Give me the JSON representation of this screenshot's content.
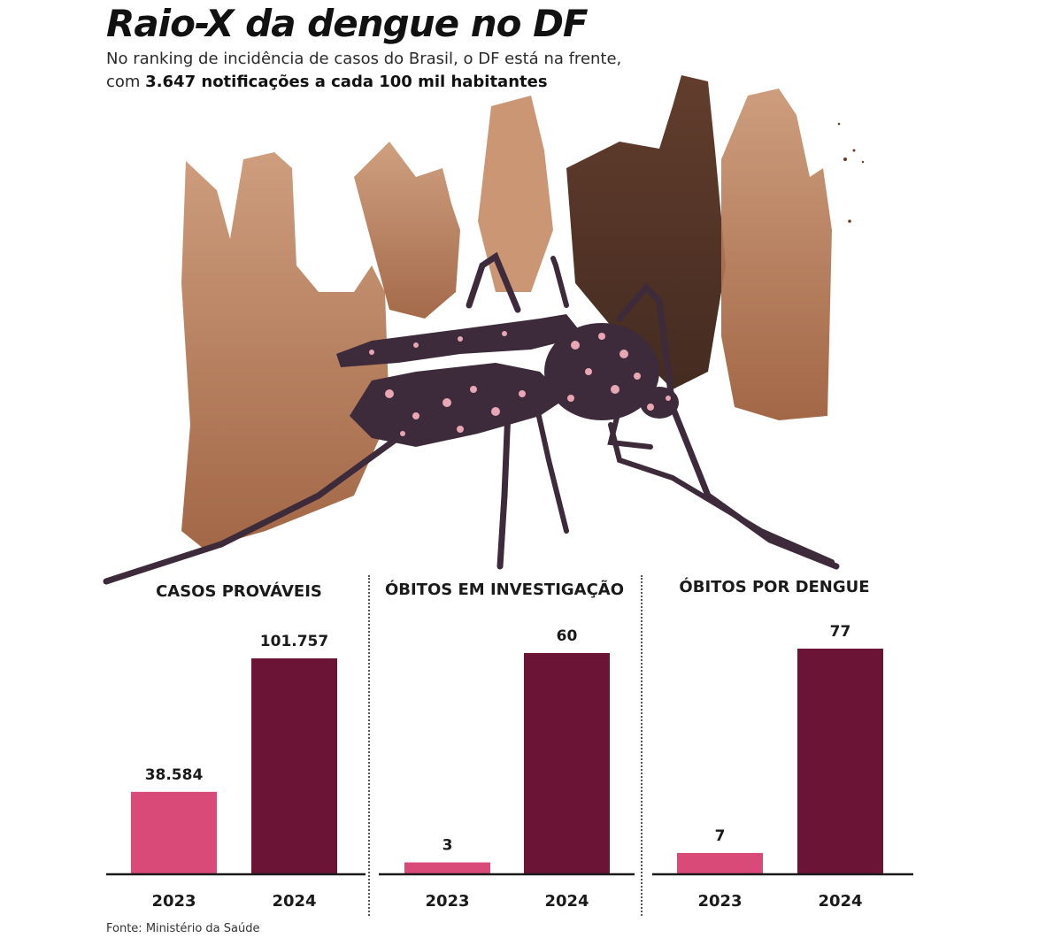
{
  "header": {
    "title": "Raio-X da dengue no DF",
    "subtitle_part1": "No ranking de incidência de casos do Brasil, o DF está na frente, com ",
    "subtitle_bold": "3.647 notificações a cada 100 mil habitantes"
  },
  "illustration": {
    "icon": "mosquito-icon",
    "background": "watercolor-brush-strokes"
  },
  "colors": {
    "year_2023": "#d94a78",
    "year_2024": "#6b1436",
    "stroke_light": "#b07048",
    "stroke_dark": "#4a2a1c",
    "mosquito_body": "#3d2a3a",
    "mosquito_spots": "#e9a6b4"
  },
  "chart_data": [
    {
      "type": "bar",
      "title": "CASOS PROVÁVEIS",
      "categories": [
        "2023",
        "2024"
      ],
      "values": [
        38584,
        101757
      ],
      "value_labels": [
        "38.584",
        "101.757"
      ]
    },
    {
      "type": "bar",
      "title": "ÓBITOS EM INVESTIGAÇÃO",
      "categories": [
        "2023",
        "2024"
      ],
      "values": [
        3,
        60
      ],
      "value_labels": [
        "3",
        "60"
      ]
    },
    {
      "type": "bar",
      "title": "ÓBITOS POR DENGUE",
      "categories": [
        "2023",
        "2024"
      ],
      "values": [
        7,
        77
      ],
      "value_labels": [
        "7",
        "77"
      ]
    }
  ],
  "footer": {
    "source": "Fonte: Ministério da Saúde"
  }
}
